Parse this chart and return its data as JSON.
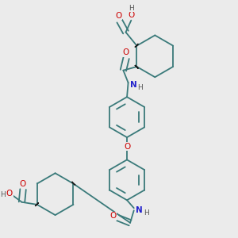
{
  "background_color": "#ebebeb",
  "bond_color": "#3a7a7a",
  "dark_bond_color": "#1a1a1a",
  "atom_colors": {
    "O": "#cc0000",
    "N": "#2222cc",
    "H": "#555555",
    "C": "#3a7a7a"
  },
  "figsize": [
    3.0,
    3.0
  ],
  "dpi": 100
}
